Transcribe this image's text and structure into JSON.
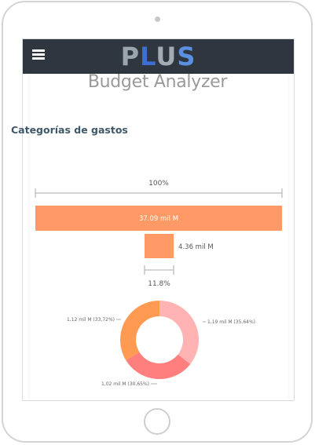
{
  "header": {
    "logo_text": [
      "P",
      "L",
      "U",
      "S"
    ]
  },
  "page": {
    "title": "Budget Analyzer"
  },
  "section": {
    "title": "Categorías de gastos"
  },
  "colors": {
    "header_bg": "#2f3640",
    "bar_fill": "#ff9966",
    "donut_1": "#ffb3b3",
    "donut_2": "#ff7f7f",
    "donut_3": "#ff9a52"
  },
  "chart_data": [
    {
      "type": "bar",
      "bars": [
        {
          "value_label": "37.09 mil M",
          "fraction": 1.0
        },
        {
          "value_label": "4.36 mil M",
          "fraction": 0.118
        }
      ],
      "total_label": "100%",
      "share_label": "11.8%"
    },
    {
      "type": "pie",
      "donut": true,
      "slices": [
        {
          "label": "1,19 mil M (35,64%)",
          "value": 35.64,
          "color": "#ffb3b3"
        },
        {
          "label": "1,02 mil M (30,65%)",
          "value": 30.65,
          "color": "#ff7f7f"
        },
        {
          "label": "1,12 mil M (33,72%)",
          "value": 33.72,
          "color": "#ff9a52"
        }
      ]
    }
  ]
}
